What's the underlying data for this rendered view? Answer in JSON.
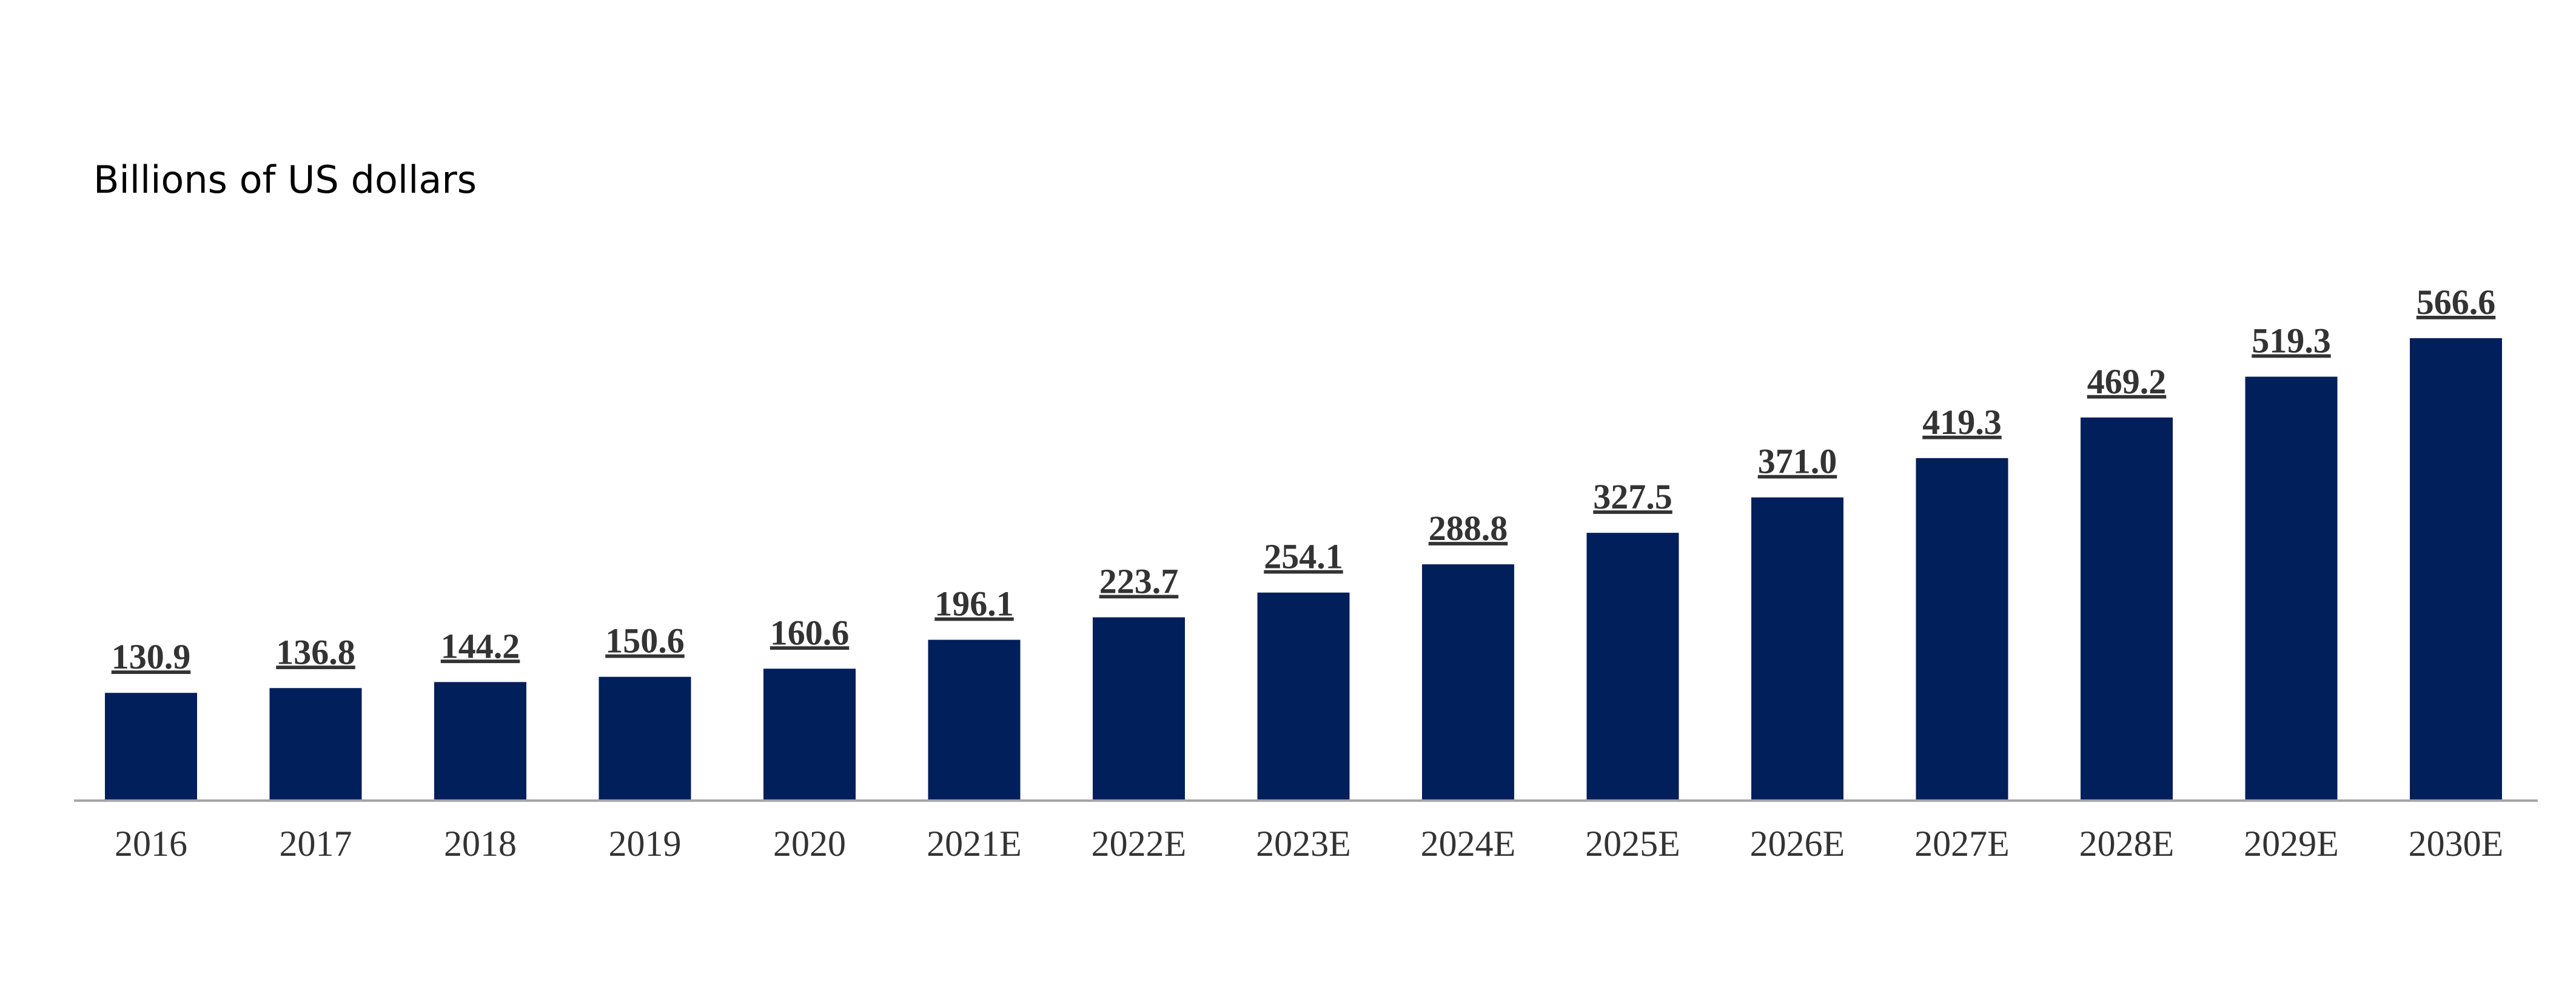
{
  "chart_data": {
    "type": "bar",
    "subtitle": "Billions of US dollars",
    "categories": [
      "2016",
      "2017",
      "2018",
      "2019",
      "2020",
      "2021E",
      "2022E",
      "2023E",
      "2024E",
      "2025E",
      "2026E",
      "2027E",
      "2028E",
      "2029E",
      "2030E"
    ],
    "values": [
      130.9,
      136.8,
      144.2,
      150.6,
      160.6,
      196.1,
      223.7,
      254.1,
      288.8,
      327.5,
      371.0,
      419.3,
      469.2,
      519.3,
      566.6
    ],
    "value_labels": [
      "130.9",
      "136.8",
      "144.2",
      "150.6",
      "160.6",
      "196.1",
      "223.7",
      "254.1",
      "288.8",
      "327.5",
      "371.0",
      "419.3",
      "469.2",
      "519.3",
      "566.6"
    ],
    "color": "#001f5b"
  }
}
